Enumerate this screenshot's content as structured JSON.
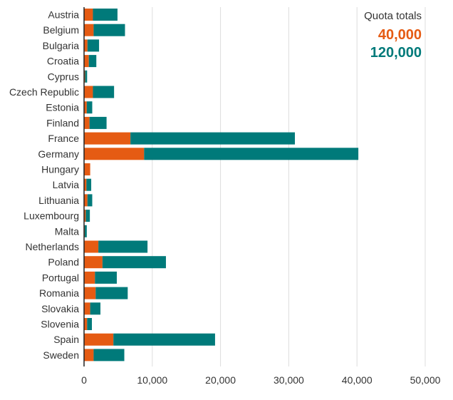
{
  "chart_data": {
    "type": "bar",
    "orientation": "horizontal",
    "stacked": true,
    "title": "",
    "xlabel": "",
    "ylabel": "",
    "xlim": [
      0,
      50000
    ],
    "xticks": [
      0,
      10000,
      20000,
      30000,
      40000,
      50000
    ],
    "xtick_labels": [
      "0",
      "10,000",
      "20,000",
      "30,000",
      "40,000",
      "50,000"
    ],
    "grid": true,
    "categories": [
      "Austria",
      "Belgium",
      "Bulgaria",
      "Croatia",
      "Cyprus",
      "Czech Republic",
      "Estonia",
      "Finland",
      "France",
      "Germany",
      "Hungary",
      "Latvia",
      "Lithuania",
      "Luxembourg",
      "Malta",
      "Netherlands",
      "Poland",
      "Portugal",
      "Romania",
      "Slovakia",
      "Slovenia",
      "Spain",
      "Sweden"
    ],
    "series": [
      {
        "name": "40,000",
        "color": "#e55b13",
        "values": [
          1300,
          1400,
          500,
          700,
          150,
          1300,
          400,
          800,
          6800,
          8800,
          900,
          350,
          500,
          250,
          100,
          2100,
          2700,
          1600,
          1700,
          900,
          450,
          4300,
          1400
        ]
      },
      {
        "name": "120,000",
        "color": "#007a7a",
        "values": [
          3600,
          4600,
          1700,
          1100,
          300,
          3100,
          800,
          2500,
          24100,
          31400,
          0,
          700,
          700,
          600,
          300,
          7200,
          9300,
          3200,
          4700,
          1500,
          700,
          14900,
          4500
        ]
      }
    ],
    "legend": {
      "title": "Quota totals",
      "position": "top-right"
    }
  }
}
